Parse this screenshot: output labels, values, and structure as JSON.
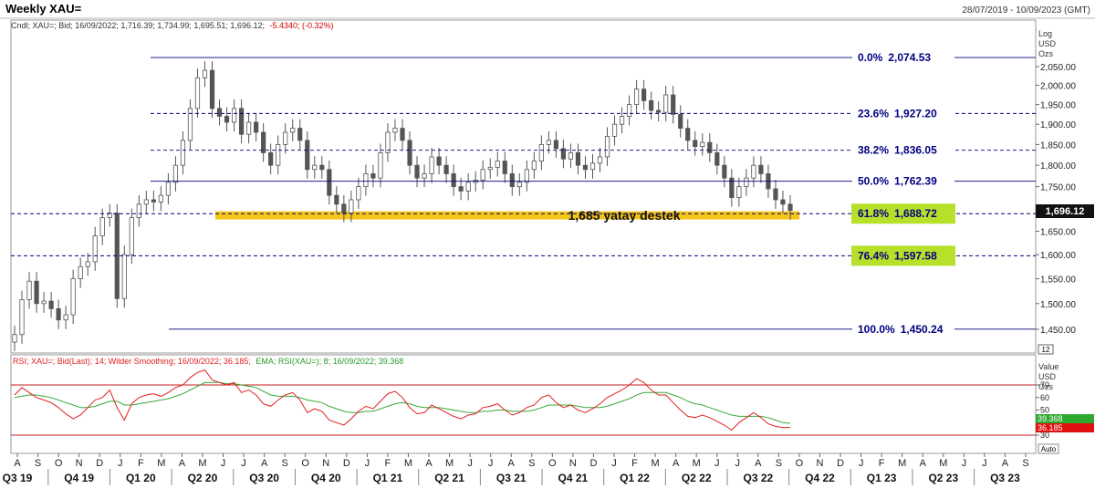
{
  "header": {
    "title": "Weekly XAU=",
    "date_range": "28/07/2019 - 10/09/2023 (GMT)"
  },
  "price_legend": {
    "prefix": "Cndl; XAU=; Bid; 16/09/2022; 1,716.39; 1,734.99; 1,695.51; 1,696.12;",
    "change": "-5.4340; (-0.32%)",
    "change_color": "#d40000"
  },
  "price_axis": {
    "unit_lines": [
      "Log",
      "USD",
      "Ozs"
    ],
    "ticks": [
      "2,050.00",
      "2,000.00",
      "1,950.00",
      "1,900.00",
      "1,850.00",
      "1,800.00",
      "1,750.00",
      "1,700.00",
      "1,650.00",
      "1,600.00",
      "1,550.00",
      "1,500.00",
      "1,450.00"
    ],
    "last_price_label": "1,696.12",
    "scale_box": "12"
  },
  "rsi_axis": {
    "unit_lines": [
      "Value",
      "USD",
      "Ozs"
    ],
    "ticks": [
      "70",
      "60",
      "50",
      "40",
      "30"
    ],
    "ema_value_label": "39.368",
    "rsi_value_label": "36.185",
    "auto_label": "Auto"
  },
  "rsi_legend": {
    "rsi_text": "RSI; XAU=; Bid(Last); 14; Wilder Smoothing; 16/09/2022; 36.185;",
    "ema_text": "EMA; RSI(XAU=); 8; 16/09/2022; 39.368"
  },
  "fib_levels": [
    {
      "pct": "0.0%",
      "value": "2,074.53",
      "price": 2074.53,
      "highlight": false,
      "line": "solid"
    },
    {
      "pct": "23.6%",
      "value": "1,927.20",
      "price": 1927.2,
      "highlight": false,
      "line": "dashed"
    },
    {
      "pct": "38.2%",
      "value": "1,836.05",
      "price": 1836.05,
      "highlight": false,
      "line": "dashed"
    },
    {
      "pct": "50.0%",
      "value": "1,762.39",
      "price": 1762.39,
      "highlight": false,
      "line": "solid"
    },
    {
      "pct": "61.8%",
      "value": "1,688.72",
      "price": 1688.72,
      "highlight": true,
      "line": "dashed"
    },
    {
      "pct": "76.4%",
      "value": "1,597.58",
      "price": 1597.58,
      "highlight": true,
      "line": "dashed"
    },
    {
      "pct": "100.0%",
      "value": "1,450.24",
      "price": 1450.24,
      "highlight": false,
      "line": "solid"
    }
  ],
  "support_zone": {
    "label": "1,685 yatay destek",
    "price_top": 1694,
    "price_bottom": 1676,
    "color": "#f5c518"
  },
  "x_axis": {
    "months": [
      "A",
      "S",
      "O",
      "N",
      "D",
      "J",
      "F",
      "M",
      "A",
      "M",
      "J",
      "J",
      "A",
      "S",
      "O",
      "N",
      "D",
      "J",
      "F",
      "M",
      "A",
      "M",
      "J",
      "J",
      "A",
      "S",
      "O",
      "N",
      "D",
      "J",
      "F",
      "M",
      "A",
      "M",
      "J",
      "J",
      "A",
      "S",
      "O",
      "N",
      "D",
      "J",
      "F",
      "M",
      "A",
      "M",
      "J",
      "J",
      "A",
      "S"
    ],
    "quarters": [
      "Q3 19",
      "Q4 19",
      "Q1 20",
      "Q2 20",
      "Q3 20",
      "Q4 20",
      "Q1 21",
      "Q2 21",
      "Q3 21",
      "Q4 21",
      "Q1 22",
      "Q2 22",
      "Q3 22",
      "Q4 22",
      "Q1 23",
      "Q2 23",
      "Q3 23"
    ]
  },
  "colors": {
    "fib_line": "#00007a",
    "fib_text": "#000080",
    "fib_highlight": "#b6e02a",
    "candle": "#555555",
    "rsi_line": "#e02020",
    "ema_line": "#3aa83a",
    "rsi_bound": "#c02020"
  },
  "chart_data": {
    "type": "candlestick",
    "title": "Weekly XAU=",
    "scale": "log",
    "ylim": [
      1400,
      2100
    ],
    "x_range": [
      "28/07/2019",
      "10/09/2023"
    ],
    "series": [
      {
        "name": "XAU=",
        "values": [
          1440,
          1508,
          1545,
          1500,
          1505,
          1490,
          1468,
          1478,
          1550,
          1575,
          1585,
          1640,
          1680,
          1690,
          1510,
          1600,
          1680,
          1710,
          1720,
          1715,
          1730,
          1760,
          1800,
          1860,
          1940,
          2020,
          2040,
          1940,
          1920,
          1905,
          1940,
          1875,
          1905,
          1880,
          1830,
          1800,
          1850,
          1880,
          1890,
          1860,
          1790,
          1800,
          1790,
          1730,
          1710,
          1690,
          1720,
          1750,
          1780,
          1770,
          1830,
          1880,
          1890,
          1860,
          1800,
          1770,
          1780,
          1820,
          1800,
          1780,
          1750,
          1740,
          1760,
          1765,
          1790,
          1795,
          1810,
          1780,
          1750,
          1760,
          1790,
          1810,
          1850,
          1860,
          1840,
          1815,
          1830,
          1800,
          1790,
          1805,
          1820,
          1870,
          1900,
          1920,
          1950,
          1990,
          1960,
          1935,
          1930,
          1975,
          1925,
          1890,
          1860,
          1845,
          1855,
          1830,
          1800,
          1770,
          1725,
          1750,
          1770,
          1800,
          1780,
          1745,
          1720,
          1710,
          1696
        ]
      },
      {
        "name": "RSI",
        "values": [
          62,
          68,
          64,
          60,
          58,
          56,
          52,
          47,
          43,
          46,
          52,
          58,
          60,
          66,
          52,
          42,
          55,
          60,
          62,
          63,
          61,
          64,
          68,
          70,
          76,
          80,
          82,
          74,
          72,
          70,
          72,
          64,
          66,
          62,
          55,
          53,
          58,
          62,
          64,
          58,
          48,
          51,
          49,
          42,
          40,
          38,
          43,
          49,
          53,
          51,
          57,
          63,
          65,
          60,
          52,
          47,
          48,
          54,
          51,
          48,
          45,
          43,
          46,
          47,
          52,
          53,
          55,
          50,
          46,
          48,
          52,
          54,
          60,
          62,
          56,
          52,
          54,
          50,
          48,
          51,
          55,
          60,
          63,
          66,
          70,
          75,
          72,
          66,
          62,
          62,
          56,
          50,
          45,
          44,
          46,
          44,
          41,
          38,
          34,
          40,
          44,
          48,
          44,
          39,
          37,
          36,
          36.185
        ]
      },
      {
        "name": "EMA",
        "values": [
          60,
          61,
          62,
          62,
          61,
          60,
          58,
          56,
          54,
          52,
          52,
          53,
          55,
          57,
          57,
          54,
          54,
          55,
          56,
          57,
          58,
          59,
          61,
          63,
          66,
          69,
          72,
          72,
          72,
          71,
          71,
          70,
          69,
          68,
          65,
          62,
          61,
          61,
          61,
          60,
          58,
          57,
          56,
          53,
          51,
          49,
          48,
          48,
          49,
          49,
          51,
          53,
          55,
          56,
          55,
          53,
          52,
          52,
          52,
          51,
          50,
          49,
          48,
          48,
          49,
          49,
          50,
          50,
          49,
          49,
          49,
          50,
          52,
          54,
          54,
          54,
          54,
          53,
          52,
          52,
          52,
          53,
          55,
          57,
          59,
          62,
          64,
          64,
          64,
          64,
          62,
          60,
          57,
          55,
          54,
          52,
          50,
          48,
          46,
          45,
          45,
          45,
          45,
          44,
          42,
          40,
          39.368
        ]
      }
    ]
  }
}
